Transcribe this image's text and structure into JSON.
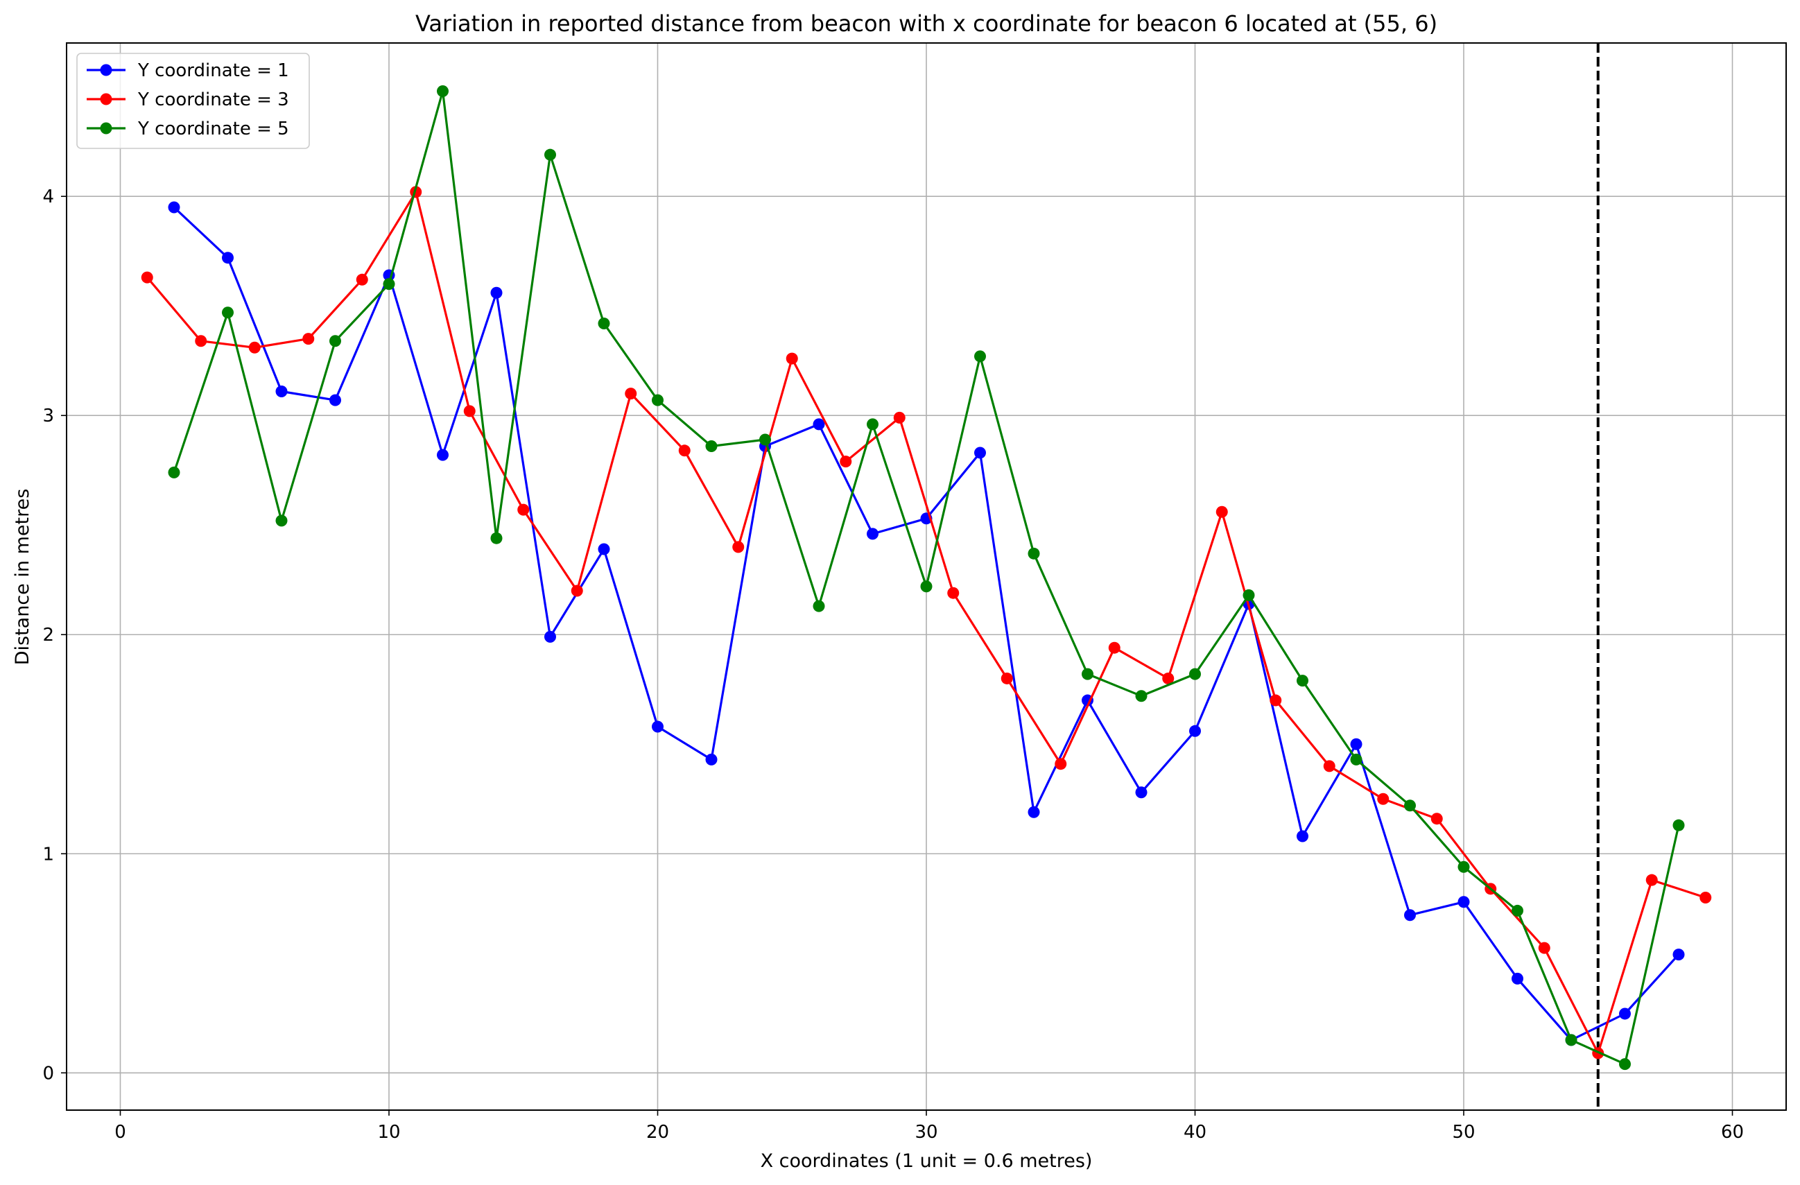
{
  "chart_data": {
    "type": "line",
    "title": "Variation in reported distance from beacon with x coordinate for beacon 6 located at (55, 6)",
    "xlabel": "X coordinates (1 unit = 0.6 metres)",
    "ylabel": "Distance in metres",
    "xlim": [
      -2,
      62
    ],
    "ylim": [
      -0.17,
      4.7
    ],
    "xticks": [
      0,
      10,
      20,
      30,
      40,
      50,
      60
    ],
    "yticks": [
      0,
      1,
      2,
      3,
      4
    ],
    "grid": true,
    "legend_position": "top-left",
    "vline": {
      "x": 55,
      "style": "dashed",
      "color": "#000000"
    },
    "series": [
      {
        "name": "Y coordinate = 1",
        "color": "#0000ff",
        "x": [
          2,
          4,
          6,
          8,
          10,
          12,
          14,
          16,
          18,
          20,
          22,
          24,
          26,
          28,
          30,
          32,
          34,
          36,
          38,
          40,
          42,
          44,
          46,
          48,
          50,
          52,
          54,
          56,
          58
        ],
        "y": [
          3.95,
          3.72,
          3.11,
          3.07,
          3.64,
          2.82,
          3.56,
          1.99,
          2.39,
          1.58,
          1.43,
          2.86,
          2.96,
          2.46,
          2.53,
          2.83,
          1.19,
          1.7,
          1.28,
          1.56,
          2.14,
          1.08,
          1.5,
          0.72,
          0.78,
          0.43,
          0.15,
          0.27,
          0.54
        ]
      },
      {
        "name": "Y coordinate = 3",
        "color": "#ff0000",
        "x": [
          1,
          3,
          5,
          7,
          9,
          11,
          13,
          15,
          17,
          19,
          21,
          23,
          25,
          27,
          29,
          31,
          33,
          35,
          37,
          39,
          41,
          43,
          45,
          47,
          49,
          51,
          53,
          55,
          57,
          59
        ],
        "y": [
          3.63,
          3.34,
          3.31,
          3.35,
          3.62,
          4.02,
          3.02,
          2.57,
          2.2,
          3.1,
          2.84,
          2.4,
          3.26,
          2.79,
          2.99,
          2.19,
          1.8,
          1.41,
          1.94,
          1.8,
          2.56,
          1.7,
          1.4,
          1.25,
          1.16,
          0.84,
          0.57,
          0.09,
          0.88,
          0.8
        ]
      },
      {
        "name": "Y coordinate = 5",
        "color": "#008000",
        "x": [
          2,
          4,
          6,
          8,
          10,
          12,
          14,
          16,
          18,
          20,
          22,
          24,
          26,
          28,
          30,
          32,
          34,
          36,
          38,
          40,
          42,
          44,
          46,
          48,
          50,
          52,
          54,
          56,
          58
        ],
        "y": [
          2.74,
          3.47,
          2.52,
          3.34,
          3.6,
          4.48,
          2.44,
          4.19,
          3.42,
          3.07,
          2.86,
          2.89,
          2.13,
          2.96,
          2.22,
          3.27,
          2.37,
          1.82,
          1.72,
          1.82,
          2.18,
          1.79,
          1.43,
          1.22,
          0.94,
          0.74,
          0.15,
          0.04,
          1.13
        ]
      }
    ]
  }
}
